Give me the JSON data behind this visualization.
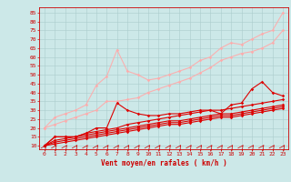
{
  "title": "",
  "xlabel": "Vent moyen/en rafales ( km/h )",
  "background_color": "#cce8e8",
  "grid_color": "#aacccc",
  "x_values": [
    0,
    1,
    2,
    3,
    4,
    5,
    6,
    7,
    8,
    9,
    10,
    11,
    12,
    13,
    14,
    15,
    16,
    17,
    18,
    19,
    20,
    21,
    22,
    23
  ],
  "series": [
    {
      "color": "#ffaaaa",
      "alpha": 0.9,
      "y": [
        20,
        26,
        28,
        30,
        33,
        44,
        49,
        64,
        52,
        50,
        47,
        48,
        50,
        52,
        54,
        58,
        60,
        65,
        68,
        67,
        70,
        73,
        75,
        85
      ],
      "linewidth": 0.8
    },
    {
      "color": "#ffaaaa",
      "alpha": 0.9,
      "y": [
        20,
        22,
        24,
        26,
        28,
        30,
        35,
        35,
        36,
        37,
        40,
        42,
        44,
        46,
        48,
        51,
        54,
        58,
        60,
        62,
        63,
        65,
        68,
        75
      ],
      "linewidth": 0.8
    },
    {
      "color": "#dd0000",
      "alpha": 1.0,
      "y": [
        10,
        15,
        15,
        15,
        17,
        20,
        20,
        34,
        30,
        28,
        27,
        27,
        28,
        28,
        29,
        30,
        30,
        28,
        33,
        34,
        42,
        46,
        40,
        38
      ],
      "linewidth": 0.8
    },
    {
      "color": "#dd0000",
      "alpha": 1.0,
      "y": [
        10,
        15,
        15,
        15,
        17,
        18,
        19,
        20,
        22,
        23,
        24,
        25,
        26,
        27,
        28,
        29,
        30,
        30,
        31,
        32,
        33,
        34,
        35,
        36
      ],
      "linewidth": 0.8
    },
    {
      "color": "#dd0000",
      "alpha": 1.0,
      "y": [
        10,
        13,
        14,
        15,
        16,
        17,
        18,
        19,
        20,
        21,
        22,
        23,
        24,
        24,
        25,
        26,
        27,
        28,
        28,
        29,
        30,
        31,
        32,
        33
      ],
      "linewidth": 0.8
    },
    {
      "color": "#dd0000",
      "alpha": 1.0,
      "y": [
        10,
        12,
        13,
        14,
        15,
        16,
        17,
        18,
        19,
        20,
        21,
        22,
        23,
        23,
        24,
        25,
        26,
        27,
        27,
        28,
        29,
        30,
        31,
        32
      ],
      "linewidth": 0.8
    },
    {
      "color": "#dd0000",
      "alpha": 1.0,
      "y": [
        10,
        11,
        12,
        13,
        14,
        15,
        16,
        17,
        18,
        19,
        20,
        21,
        22,
        22,
        23,
        24,
        25,
        26,
        26,
        27,
        28,
        29,
        30,
        31
      ],
      "linewidth": 0.8
    }
  ],
  "ylim": [
    8,
    88
  ],
  "xlim": [
    -0.5,
    23.5
  ],
  "yticks": [
    10,
    15,
    20,
    25,
    30,
    35,
    40,
    45,
    50,
    55,
    60,
    65,
    70,
    75,
    80,
    85
  ],
  "xticks": [
    0,
    1,
    2,
    3,
    4,
    5,
    6,
    7,
    8,
    9,
    10,
    11,
    12,
    13,
    14,
    15,
    16,
    17,
    18,
    19,
    20,
    21,
    22,
    23
  ]
}
